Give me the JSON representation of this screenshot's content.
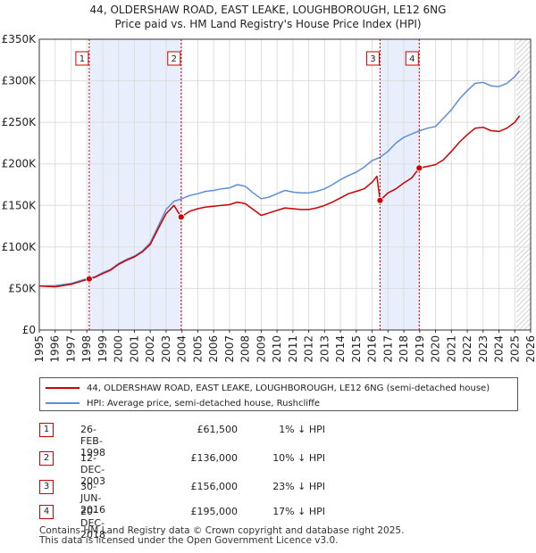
{
  "title_line1": "44, OLDERSHAW ROAD, EAST LEAKE, LOUGHBOROUGH, LE12 6NG",
  "title_line2": "Price paid vs. HM Land Registry's House Price Index (HPI)",
  "colors": {
    "property": "#cc0000",
    "hpi": "#5b8fd6",
    "shade": "#e8eefb",
    "marker": "#cc0000"
  },
  "legend": {
    "property_label": "44, OLDERSHAW ROAD, EAST LEAKE, LOUGHBOROUGH, LE12 6NG (semi-detached house)",
    "hpi_label": "HPI: Average price, semi-detached house, Rushcliffe"
  },
  "transactions": [
    {
      "num": "1",
      "date": "26-FEB-1998",
      "price": "£61,500",
      "hpi_diff": "1% ↓ HPI"
    },
    {
      "num": "2",
      "date": "12-DEC-2003",
      "price": "£136,000",
      "hpi_diff": "10% ↓ HPI"
    },
    {
      "num": "3",
      "date": "30-JUN-2016",
      "price": "£156,000",
      "hpi_diff": "23% ↓ HPI"
    },
    {
      "num": "4",
      "date": "20-DEC-2018",
      "price": "£195,000",
      "hpi_diff": "17% ↓ HPI"
    }
  ],
  "footer_line1": "Contains HM Land Registry data © Crown copyright and database right 2025.",
  "footer_line2": "This data is licensed under the Open Government Licence v3.0.",
  "chart_data": {
    "type": "line",
    "title": "Price paid vs. HM Land Registry's House Price Index (HPI)",
    "xlim": [
      1995,
      2026
    ],
    "ylim": [
      0,
      350000
    ],
    "x_ticks": [
      1995,
      1996,
      1997,
      1998,
      1999,
      2000,
      2001,
      2002,
      2003,
      2004,
      2005,
      2006,
      2007,
      2008,
      2009,
      2010,
      2011,
      2012,
      2013,
      2014,
      2015,
      2016,
      2017,
      2018,
      2019,
      2020,
      2021,
      2022,
      2023,
      2024,
      2025,
      2026
    ],
    "y_ticks": [
      {
        "value": 0,
        "label": "£0"
      },
      {
        "value": 50000,
        "label": "£50K"
      },
      {
        "value": 100000,
        "label": "£100K"
      },
      {
        "value": 150000,
        "label": "£150K"
      },
      {
        "value": 200000,
        "label": "£200K"
      },
      {
        "value": 250000,
        "label": "£250K"
      },
      {
        "value": 300000,
        "label": "£300K"
      },
      {
        "value": 350000,
        "label": "£350K"
      }
    ],
    "shaded_ranges": [
      [
        1998.15,
        2003.95
      ],
      [
        2016.5,
        2018.97
      ]
    ],
    "hatched_from": 2025.1,
    "sale_markers": [
      {
        "label": "1",
        "x": 1998.15,
        "y": 61500
      },
      {
        "label": "2",
        "x": 2003.95,
        "y": 136000
      },
      {
        "label": "3",
        "x": 2016.5,
        "y": 156000
      },
      {
        "label": "4",
        "x": 2018.97,
        "y": 195000
      }
    ],
    "series": [
      {
        "name": "HPI: Average price, semi-detached house, Rushcliffe",
        "x": [
          1995,
          1996,
          1997,
          1998,
          1998.5,
          1999,
          1999.5,
          2000,
          2000.5,
          2001,
          2001.5,
          2002,
          2002.5,
          2003,
          2003.5,
          2004,
          2004.5,
          2005,
          2005.5,
          2006,
          2006.5,
          2007,
          2007.5,
          2008,
          2008.5,
          2009,
          2009.5,
          2010,
          2010.5,
          2011,
          2011.5,
          2012,
          2012.5,
          2013,
          2013.5,
          2014,
          2014.5,
          2015,
          2015.5,
          2016,
          2016.5,
          2017,
          2017.5,
          2018,
          2018.5,
          2019,
          2019.5,
          2020,
          2020.5,
          2021,
          2021.5,
          2022,
          2022.5,
          2023,
          2023.5,
          2024,
          2024.5,
          2025,
          2025.3
        ],
        "y": [
          53000,
          53500,
          56000,
          62000,
          64000,
          69000,
          73000,
          80000,
          85000,
          89000,
          95000,
          105000,
          125000,
          145000,
          155000,
          158000,
          162000,
          164000,
          167000,
          168000,
          170000,
          171000,
          175000,
          173000,
          165000,
          158000,
          160000,
          164000,
          168000,
          166000,
          165000,
          165000,
          167000,
          170000,
          175000,
          181000,
          186000,
          190000,
          196000,
          204000,
          208000,
          215000,
          225000,
          232000,
          236000,
          240000,
          243000,
          245000,
          255000,
          265000,
          278000,
          288000,
          297000,
          298000,
          294000,
          293000,
          297000,
          305000,
          312000
        ]
      },
      {
        "name": "44, OLDERSHAW ROAD, EAST LEAKE, LOUGHBOROUGH, LE12 6NG (semi-detached house)",
        "x": [
          1995,
          1996,
          1997,
          1998.15,
          1998.5,
          1999,
          1999.5,
          2000,
          2000.5,
          2001,
          2001.5,
          2002,
          2002.5,
          2003,
          2003.5,
          2003.95,
          2004.5,
          2005,
          2005.5,
          2006,
          2006.5,
          2007,
          2007.5,
          2008,
          2008.5,
          2009,
          2009.5,
          2010,
          2010.5,
          2011,
          2011.5,
          2012,
          2012.5,
          2013,
          2013.5,
          2014,
          2014.5,
          2015,
          2015.5,
          2016,
          2016.3,
          2016.5,
          2017,
          2017.5,
          2018,
          2018.5,
          2018.97,
          2019.5,
          2020,
          2020.5,
          2021,
          2021.5,
          2022,
          2022.5,
          2023,
          2023.5,
          2024,
          2024.5,
          2025,
          2025.3
        ],
        "y": [
          53000,
          52000,
          55000,
          61500,
          63500,
          68000,
          72000,
          79000,
          84000,
          88000,
          94000,
          103000,
          122000,
          140000,
          150000,
          136000,
          143000,
          146000,
          148000,
          149000,
          150000,
          151000,
          154000,
          152000,
          145000,
          138000,
          141000,
          144000,
          147000,
          146000,
          145000,
          145000,
          147000,
          150000,
          154000,
          159000,
          164000,
          167000,
          170000,
          178000,
          185000,
          156000,
          165000,
          170000,
          177000,
          183000,
          195000,
          197000,
          199000,
          205000,
          215000,
          226000,
          235000,
          243000,
          244000,
          240000,
          239000,
          243000,
          250000,
          258000
        ]
      }
    ]
  }
}
